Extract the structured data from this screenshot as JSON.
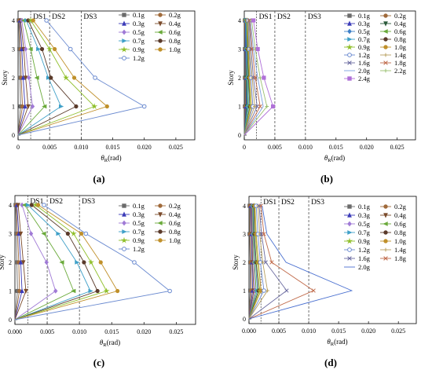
{
  "chart_data": [
    {
      "panel": "(a)",
      "type": "line",
      "ylabel": "Story",
      "xlabel_symbol": "θ",
      "xlabel_sub": "R",
      "xlabel_unit": "(rad)",
      "xticks": [
        "0",
        "0.005",
        "0.010",
        "0.015",
        "0.020",
        "0.025"
      ],
      "yticks": [
        "0",
        "1",
        "2",
        "3",
        "4"
      ],
      "xlim": [
        0,
        0.028
      ],
      "ylim": [
        0,
        4
      ],
      "limits": [
        {
          "label": "DS1",
          "x": 0.002
        },
        {
          "label": "DS2",
          "x": 0.005
        },
        {
          "label": "DS3",
          "x": 0.01
        }
      ],
      "series": [
        {
          "name": "0.1g",
          "color": "#6b6b6b",
          "marker": "square",
          "values": [
            0,
            0.0004,
            0.0003,
            0.0002,
            0.0001
          ]
        },
        {
          "name": "0.2g",
          "color": "#a06a3a",
          "marker": "circle",
          "values": [
            0,
            0.0007,
            0.0005,
            0.0004,
            0.0002
          ]
        },
        {
          "name": "0.3g",
          "color": "#3b3bb8",
          "marker": "triangle",
          "values": [
            0,
            0.0011,
            0.0008,
            0.0006,
            0.0003
          ]
        },
        {
          "name": "0.4g",
          "color": "#7a4a2a",
          "marker": "tridown",
          "values": [
            0,
            0.0016,
            0.0012,
            0.0009,
            0.0004
          ]
        },
        {
          "name": "0.5g",
          "color": "#a07ad6",
          "marker": "diamond",
          "values": [
            0,
            0.0023,
            0.0017,
            0.0012,
            0.0006
          ]
        },
        {
          "name": "0.6g",
          "color": "#6aaa3a",
          "marker": "triangleleft",
          "values": [
            0,
            0.0042,
            0.003,
            0.002,
            0.0009
          ]
        },
        {
          "name": "0.7g",
          "color": "#3fa0c8",
          "marker": "triangleright",
          "values": [
            0,
            0.0068,
            0.0048,
            0.0032,
            0.0013
          ]
        },
        {
          "name": "0.8g",
          "color": "#5a3a2a",
          "marker": "circle",
          "values": [
            0,
            0.0092,
            0.0052,
            0.0038,
            0.0016
          ]
        },
        {
          "name": "0.9g",
          "color": "#8fbf2a",
          "marker": "star",
          "values": [
            0,
            0.0121,
            0.0076,
            0.005,
            0.002
          ]
        },
        {
          "name": "1.0g",
          "color": "#c0902a",
          "marker": "circle",
          "values": [
            0,
            0.0141,
            0.0089,
            0.0058,
            0.0024
          ]
        },
        {
          "name": "1.2g",
          "color": "#6a8ad0",
          "marker": "hexagon",
          "values": [
            0,
            0.02,
            0.0122,
            0.0083,
            0.0045
          ]
        }
      ]
    },
    {
      "panel": "(b)",
      "type": "line",
      "ylabel": "Story",
      "xlabel_symbol": "θ",
      "xlabel_sub": "R",
      "xlabel_unit": "(rad)",
      "xticks": [
        "0",
        "0.005",
        "0.010",
        "0.015",
        "0.020",
        "0.025"
      ],
      "yticks": [
        "0",
        "1",
        "2",
        "3",
        "4"
      ],
      "xlim": [
        0,
        0.028
      ],
      "ylim": [
        0,
        4
      ],
      "limits": [
        {
          "label": "DS1",
          "x": 0.002
        },
        {
          "label": "DS2",
          "x": 0.005
        },
        {
          "label": "DS3",
          "x": 0.01
        }
      ],
      "series": [
        {
          "name": "0.1g",
          "color": "#6b6b6b",
          "marker": "square",
          "values": [
            0,
            0.0001,
            0.0001,
            0.0001,
            0.0001
          ]
        },
        {
          "name": "0.2g",
          "color": "#a06a3a",
          "marker": "circle",
          "values": [
            0,
            0.0002,
            0.0002,
            0.0002,
            0.0001
          ]
        },
        {
          "name": "0.3g",
          "color": "#3b3bb8",
          "marker": "triangle",
          "values": [
            0,
            0.0003,
            0.0003,
            0.0002,
            0.0002
          ]
        },
        {
          "name": "0.4g",
          "color": "#2a5a3a",
          "marker": "tridown",
          "values": [
            0,
            0.0004,
            0.0003,
            0.0003,
            0.0002
          ]
        },
        {
          "name": "0.5g",
          "color": "#3f80c8",
          "marker": "diamond",
          "values": [
            0,
            0.0005,
            0.0004,
            0.0003,
            0.0002
          ]
        },
        {
          "name": "0.6g",
          "color": "#6aaa3a",
          "marker": "triangleleft",
          "values": [
            0,
            0.0006,
            0.0005,
            0.0004,
            0.0003
          ]
        },
        {
          "name": "0.7g",
          "color": "#3fa0c8",
          "marker": "triangleright",
          "values": [
            0,
            0.0007,
            0.0006,
            0.0004,
            0.0003
          ]
        },
        {
          "name": "0.8g",
          "color": "#5a3a2a",
          "marker": "circle",
          "values": [
            0,
            0.0009,
            0.0007,
            0.0005,
            0.0004
          ]
        },
        {
          "name": "0.9g",
          "color": "#8fbf2a",
          "marker": "star",
          "values": [
            0,
            0.001,
            0.0008,
            0.0006,
            0.0004
          ]
        },
        {
          "name": "1.0g",
          "color": "#c0902a",
          "marker": "circle",
          "values": [
            0,
            0.0012,
            0.0009,
            0.0007,
            0.0005
          ]
        },
        {
          "name": "1.2g",
          "color": "#6a8ad0",
          "marker": "hexagon",
          "values": [
            0,
            0.0014,
            0.0011,
            0.0008,
            0.0006
          ]
        },
        {
          "name": "1.4g",
          "color": "#b8a060",
          "marker": "plus",
          "values": [
            0,
            0.0017,
            0.0013,
            0.0009,
            0.0007
          ]
        },
        {
          "name": "1.6g",
          "color": "#6a6aa0",
          "marker": "x",
          "values": [
            0,
            0.0021,
            0.0015,
            0.0011,
            0.0008
          ]
        },
        {
          "name": "1.8g",
          "color": "#c06a4a",
          "marker": "x",
          "values": [
            0,
            0.0026,
            0.0018,
            0.0013,
            0.0009
          ]
        },
        {
          "name": "2.0g",
          "color": "#7aa0e0",
          "marker": "none",
          "values": [
            0,
            0.0031,
            0.0022,
            0.0015,
            0.001
          ]
        },
        {
          "name": "2.2g",
          "color": "#9ac070",
          "marker": "plus",
          "values": [
            0,
            0.0037,
            0.0026,
            0.0018,
            0.0012
          ]
        },
        {
          "name": "2.4g",
          "color": "#b070d8",
          "marker": "square",
          "values": [
            0,
            0.0047,
            0.0032,
            0.0022,
            0.0015
          ]
        }
      ]
    },
    {
      "panel": "(c)",
      "type": "line",
      "ylabel": "Story",
      "xlabel_symbol": "θ",
      "xlabel_sub": "R",
      "xlabel_unit": "(rad)",
      "xticks": [
        "0.000",
        "0.005",
        "0.010",
        "0.015",
        "0.020",
        "0.025"
      ],
      "yticks": [
        "0",
        "1",
        "2",
        "3",
        "4"
      ],
      "xlim": [
        0,
        0.028
      ],
      "ylim": [
        0,
        4
      ],
      "limits": [
        {
          "label": "DS1",
          "x": 0.002
        },
        {
          "label": "DS2",
          "x": 0.005
        },
        {
          "label": "DS3",
          "x": 0.01
        }
      ],
      "series": [
        {
          "name": "0.1g",
          "color": "#6b6b6b",
          "marker": "square",
          "values": [
            0,
            0.0004,
            0.0003,
            0.0002,
            0.0001
          ]
        },
        {
          "name": "0.2g",
          "color": "#a06a3a",
          "marker": "circle",
          "values": [
            0,
            0.0007,
            0.0006,
            0.0004,
            0.0002
          ]
        },
        {
          "name": "0.3g",
          "color": "#3b3bb8",
          "marker": "triangle",
          "values": [
            0,
            0.0011,
            0.0009,
            0.0006,
            0.0003
          ]
        },
        {
          "name": "0.4g",
          "color": "#7a4a2a",
          "marker": "tridown",
          "values": [
            0,
            0.0017,
            0.0013,
            0.0009,
            0.0005
          ]
        },
        {
          "name": "0.5g",
          "color": "#a07ad6",
          "marker": "diamond",
          "values": [
            0,
            0.0063,
            0.0049,
            0.0025,
            0.0011
          ]
        },
        {
          "name": "0.6g",
          "color": "#6aaa3a",
          "marker": "triangleleft",
          "values": [
            0,
            0.0091,
            0.0073,
            0.0045,
            0.0015
          ]
        },
        {
          "name": "0.7g",
          "color": "#3fa0c8",
          "marker": "triangleright",
          "values": [
            0,
            0.0117,
            0.0096,
            0.0067,
            0.002
          ]
        },
        {
          "name": "0.8g",
          "color": "#5a3a2a",
          "marker": "circle",
          "values": [
            0,
            0.0128,
            0.0107,
            0.0082,
            0.0026
          ]
        },
        {
          "name": "0.9g",
          "color": "#8fbf2a",
          "marker": "star",
          "values": [
            0,
            0.0142,
            0.0118,
            0.0091,
            0.0032
          ]
        },
        {
          "name": "1.0g",
          "color": "#c0902a",
          "marker": "circle",
          "values": [
            0,
            0.0159,
            0.0133,
            0.0103,
            0.0036
          ]
        },
        {
          "name": "1.2g",
          "color": "#6a8ad0",
          "marker": "hexagon",
          "values": [
            0,
            0.024,
            0.0185,
            0.011,
            0.0045
          ]
        }
      ]
    },
    {
      "panel": "(d)",
      "type": "line",
      "ylabel": "Story",
      "xlabel_symbol": "θ",
      "xlabel_sub": "R",
      "xlabel_unit": "(rad)",
      "xticks": [
        "0.000",
        "0.005",
        "0.010",
        "0.015",
        "0.020",
        "0.025"
      ],
      "yticks": [
        "0",
        "1",
        "2",
        "3",
        "4"
      ],
      "xlim": [
        0,
        0.028
      ],
      "ylim": [
        0,
        4
      ],
      "limits": [
        {
          "label": "DS1",
          "x": 0.002
        },
        {
          "label": "DS2",
          "x": 0.005
        },
        {
          "label": "DS3",
          "x": 0.01
        }
      ],
      "series": [
        {
          "name": "0.1g",
          "color": "#6b6b6b",
          "marker": "square",
          "values": [
            0,
            0.0002,
            0.0002,
            0.0001,
            0.0001
          ]
        },
        {
          "name": "0.2g",
          "color": "#a06a3a",
          "marker": "circle",
          "values": [
            0,
            0.0004,
            0.0003,
            0.0002,
            0.0002
          ]
        },
        {
          "name": "0.3g",
          "color": "#3b3bb8",
          "marker": "triangle",
          "values": [
            0,
            0.0006,
            0.0005,
            0.0004,
            0.0003
          ]
        },
        {
          "name": "0.4g",
          "color": "#7a4a2a",
          "marker": "tridown",
          "values": [
            0,
            0.0008,
            0.0006,
            0.0005,
            0.0004
          ]
        },
        {
          "name": "0.5g",
          "color": "#a07ad6",
          "marker": "diamond",
          "values": [
            0,
            0.001,
            0.0008,
            0.0006,
            0.0005
          ]
        },
        {
          "name": "0.6g",
          "color": "#6aaa3a",
          "marker": "triangleleft",
          "values": [
            0,
            0.0012,
            0.0009,
            0.0007,
            0.0006
          ]
        },
        {
          "name": "0.7g",
          "color": "#3fa0c8",
          "marker": "triangleright",
          "values": [
            0,
            0.0014,
            0.0011,
            0.0008,
            0.0007
          ]
        },
        {
          "name": "0.8g",
          "color": "#5a3a2a",
          "marker": "circle",
          "values": [
            0,
            0.0016,
            0.0012,
            0.0009,
            0.0008
          ]
        },
        {
          "name": "0.9g",
          "color": "#8fbf2a",
          "marker": "star",
          "values": [
            0,
            0.0018,
            0.0014,
            0.0011,
            0.0009
          ]
        },
        {
          "name": "1.0g",
          "color": "#c0902a",
          "marker": "circle",
          "values": [
            0,
            0.002,
            0.0016,
            0.0012,
            0.001
          ]
        },
        {
          "name": "1.2g",
          "color": "#6a8ad0",
          "marker": "hexagon",
          "values": [
            0,
            0.0025,
            0.0019,
            0.0015,
            0.0012
          ]
        },
        {
          "name": "1.4g",
          "color": "#b8a060",
          "marker": "plus",
          "values": [
            0,
            0.0031,
            0.0023,
            0.0018,
            0.0015
          ]
        },
        {
          "name": "1.6g",
          "color": "#6a6aa0",
          "marker": "x",
          "values": [
            0,
            0.0063,
            0.0028,
            0.0021,
            0.0017
          ]
        },
        {
          "name": "1.8g",
          "color": "#c06a4a",
          "marker": "x",
          "values": [
            0,
            0.0108,
            0.0038,
            0.0025,
            0.002
          ]
        },
        {
          "name": "2.0g",
          "color": "#4a70d0",
          "marker": "none",
          "values": [
            0,
            0.0172,
            0.0062,
            0.003,
            0.0022
          ]
        }
      ]
    }
  ]
}
